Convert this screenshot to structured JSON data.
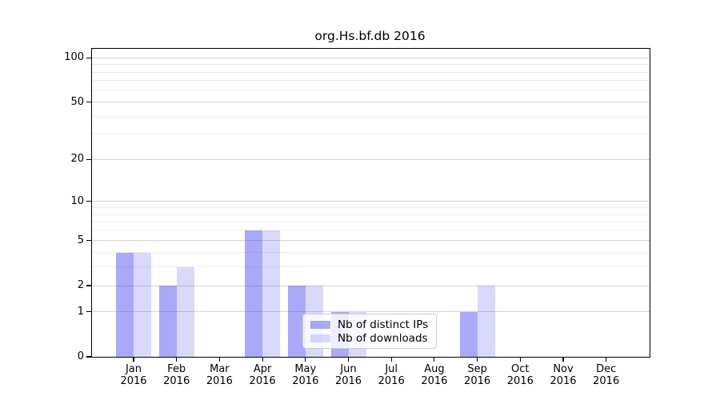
{
  "figure": {
    "title": "org.Hs.bf.db 2016"
  },
  "chart_data": {
    "type": "bar",
    "title": "org.Hs.bf.db 2016",
    "categories": [
      "Jan",
      "Feb",
      "Mar",
      "Apr",
      "May",
      "Jun",
      "Jul",
      "Aug",
      "Sep",
      "Oct",
      "Nov",
      "Dec"
    ],
    "x_tick_year": "2016",
    "series": [
      {
        "name": "Nb of distinct IPs",
        "color": "rgba(80,80,242,0.49)",
        "values": [
          4,
          2,
          0,
          6,
          2,
          1,
          0,
          0,
          1,
          0,
          0,
          0
        ]
      },
      {
        "name": "Nb of downloads",
        "color": "rgba(80,80,242,0.22)",
        "values": [
          4,
          3,
          0,
          6,
          2,
          1,
          0,
          0,
          2,
          0,
          0,
          0
        ]
      }
    ],
    "xlabel": "",
    "ylabel": "",
    "yscale": "log1p",
    "ylim": [
      0,
      115
    ],
    "y_ticks": [
      0,
      1,
      2,
      5,
      10,
      20,
      50,
      100
    ],
    "y_minor_gridlines": [
      3,
      4,
      6,
      7,
      8,
      9,
      30,
      40,
      60,
      70,
      80,
      90
    ],
    "grid": true,
    "legend": {
      "position": "lower-center",
      "labels": [
        "Nb of distinct IPs",
        "Nb of downloads"
      ]
    },
    "colors": {
      "bar_distinct_ips": "rgba(80,80,242,0.49)",
      "bar_downloads": "rgba(80,80,242,0.22)",
      "bar_base_hex": "#5050f2",
      "grid_major": "#d4d4d4",
      "grid_minor": "#ececec",
      "spine": "#000000",
      "text": "#000000"
    }
  }
}
